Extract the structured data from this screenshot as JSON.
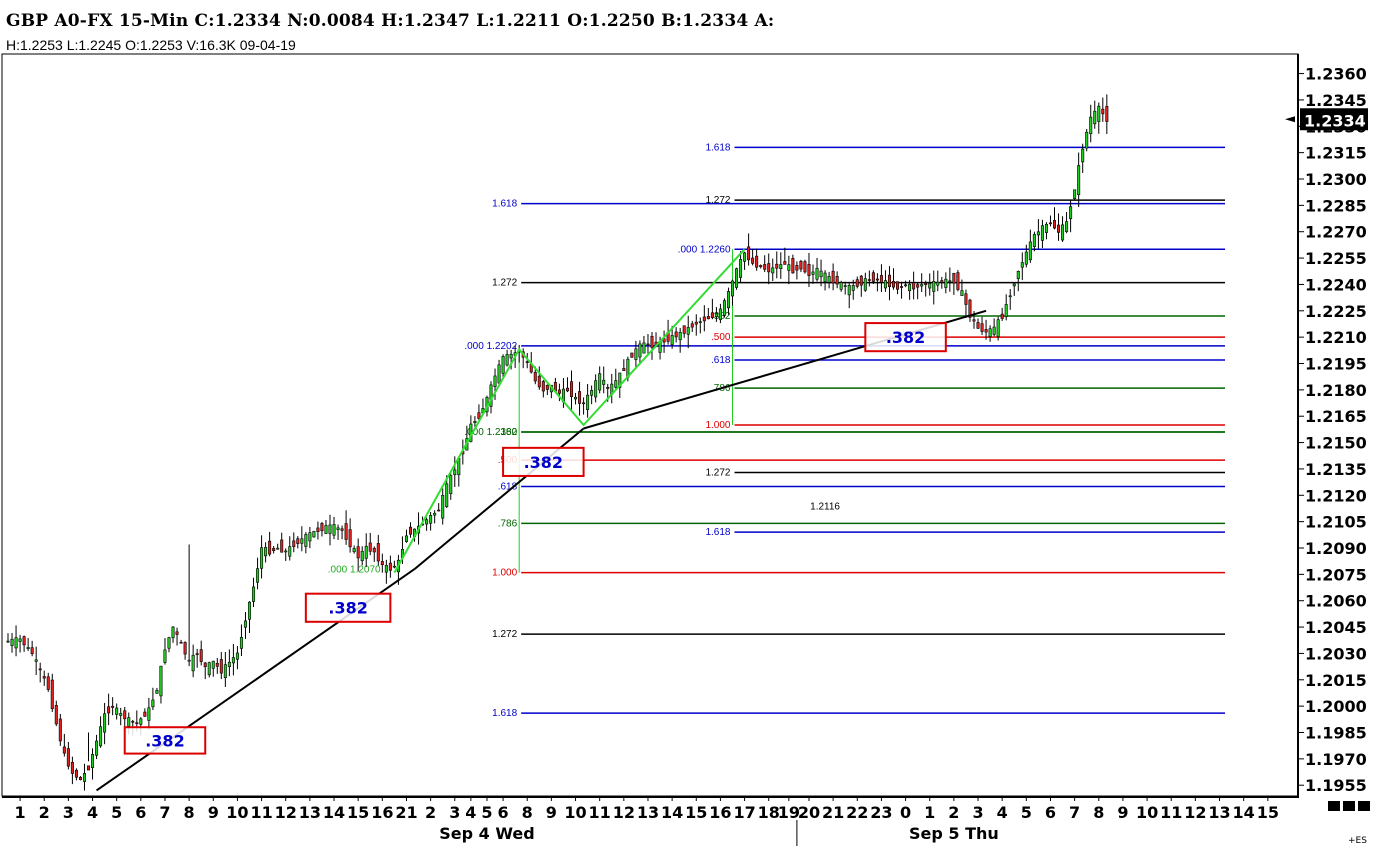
{
  "header": {
    "title": "GBP A0-FX 15-Min C:1.2334 N:0.0084 H:1.2347 L:1.2211 O:1.2250 B:1.2334 A:",
    "subtitle": "H:1.2253  L:1.2245  O:1.2253  V:16.3K  09-04-19"
  },
  "colors": {
    "up_candle": "#22cc22",
    "down_candle": "#dd2222",
    "wick": "#000000",
    "fib_blue": "#0000cc",
    "fib_black": "#000000",
    "fib_green": "#006600",
    "fib_red": "#dd0000",
    "zigzag": "#33dd33",
    "trendline": "#000000",
    "box_border": "#dd0000",
    "box_text": "#0000cc"
  },
  "chart_data": {
    "type": "candlestick",
    "symbol": "GBP A0-FX",
    "timeframe": "15-Min",
    "last_price": "1.2334",
    "y_ticks": [
      "1.2360",
      "1.2345",
      "1.2330",
      "1.2315",
      "1.2300",
      "1.2285",
      "1.2270",
      "1.2255",
      "1.2240",
      "1.2225",
      "1.2210",
      "1.2195",
      "1.2180",
      "1.2165",
      "1.2150",
      "1.2135",
      "1.2120",
      "1.2105",
      "1.2090",
      "1.2075",
      "1.2060",
      "1.2045",
      "1.2030",
      "1.2015",
      "1.2000",
      "1.1985",
      "1.1970",
      "1.1955"
    ],
    "ylim": [
      1.195,
      1.237
    ],
    "x_ticks": [
      {
        "label": "1",
        "i": 3
      },
      {
        "label": "2",
        "i": 9
      },
      {
        "label": "3",
        "i": 15
      },
      {
        "label": "4",
        "i": 21
      },
      {
        "label": "5",
        "i": 27
      },
      {
        "label": "6",
        "i": 33
      },
      {
        "label": "7",
        "i": 39
      },
      {
        "label": "8",
        "i": 45
      },
      {
        "label": "9",
        "i": 51
      },
      {
        "label": "10",
        "i": 57
      },
      {
        "label": "11",
        "i": 63
      },
      {
        "label": "12",
        "i": 69
      },
      {
        "label": "13",
        "i": 75
      },
      {
        "label": "14",
        "i": 81
      },
      {
        "label": "15",
        "i": 87
      },
      {
        "label": "16",
        "i": 93
      },
      {
        "label": "21",
        "i": 99
      },
      {
        "label": "2",
        "i": 105
      },
      {
        "label": "3",
        "i": 111
      },
      {
        "label": "4",
        "i": 115
      },
      {
        "label": "5",
        "i": 119
      },
      {
        "label": "6",
        "i": 123
      },
      {
        "label": "8",
        "i": 129
      },
      {
        "label": "9",
        "i": 135
      },
      {
        "label": "10",
        "i": 141
      },
      {
        "label": "11",
        "i": 147
      },
      {
        "label": "12",
        "i": 153
      },
      {
        "label": "13",
        "i": 159
      },
      {
        "label": "14",
        "i": 165
      },
      {
        "label": "15",
        "i": 171
      },
      {
        "label": "16",
        "i": 177
      },
      {
        "label": "17",
        "i": 183
      },
      {
        "label": "18",
        "i": 189
      },
      {
        "label": "19",
        "i": 194
      },
      {
        "label": "20",
        "i": 199
      },
      {
        "label": "21",
        "i": 205
      },
      {
        "label": "22",
        "i": 211
      },
      {
        "label": "23",
        "i": 217
      },
      {
        "label": "0",
        "i": 223
      },
      {
        "label": "1",
        "i": 229
      },
      {
        "label": "2",
        "i": 235
      },
      {
        "label": "3",
        "i": 241
      },
      {
        "label": "4",
        "i": 247
      },
      {
        "label": "5",
        "i": 253
      },
      {
        "label": "6",
        "i": 259
      },
      {
        "label": "7",
        "i": 265
      },
      {
        "label": "8",
        "i": 271
      },
      {
        "label": "9",
        "i": 277
      },
      {
        "label": "10",
        "i": 283
      },
      {
        "label": "11",
        "i": 289
      },
      {
        "label": "12",
        "i": 295
      },
      {
        "label": "13",
        "i": 301
      },
      {
        "label": "14",
        "i": 307
      },
      {
        "label": "15",
        "i": 313
      }
    ],
    "day_labels": [
      {
        "label": "Sep 4 Wed",
        "i": 119
      },
      {
        "label": "Sep 5 Thu",
        "i": 235
      }
    ],
    "day_separator_i": 196,
    "scroll_indicator": "+ES",
    "close_path": [
      [
        0,
        1.2037
      ],
      [
        3,
        1.2038
      ],
      [
        6,
        1.203
      ],
      [
        8,
        1.202
      ],
      [
        10,
        1.201
      ],
      [
        12,
        1.199
      ],
      [
        14,
        1.1972
      ],
      [
        16,
        1.1962
      ],
      [
        18,
        1.1958
      ],
      [
        20,
        1.1965
      ],
      [
        22,
        1.198
      ],
      [
        24,
        1.1995
      ],
      [
        26,
        1.2
      ],
      [
        28,
        1.1995
      ],
      [
        30,
        1.1992
      ],
      [
        32,
        1.199
      ],
      [
        35,
        1.1998
      ],
      [
        37,
        1.201
      ],
      [
        39,
        1.2033
      ],
      [
        41,
        1.2045
      ],
      [
        43,
        1.2035
      ],
      [
        45,
        1.2025
      ],
      [
        47,
        1.203
      ],
      [
        49,
        1.2022
      ],
      [
        51,
        1.2025
      ],
      [
        53,
        1.202
      ],
      [
        55,
        1.2025
      ],
      [
        57,
        1.203
      ],
      [
        59,
        1.205
      ],
      [
        61,
        1.2068
      ],
      [
        63,
        1.209
      ],
      [
        65,
        1.2088
      ],
      [
        67,
        1.209
      ],
      [
        69,
        1.2088
      ],
      [
        71,
        1.2092
      ],
      [
        73,
        1.2095
      ],
      [
        75,
        1.2098
      ],
      [
        77,
        1.21
      ],
      [
        79,
        1.2102
      ],
      [
        81,
        1.2102
      ],
      [
        83,
        1.21
      ],
      [
        85,
        1.2092
      ],
      [
        87,
        1.2085
      ],
      [
        89,
        1.209
      ],
      [
        91,
        1.2088
      ],
      [
        93,
        1.208
      ],
      [
        95,
        1.2078
      ],
      [
        97,
        1.2082
      ],
      [
        99,
        1.2098
      ],
      [
        101,
        1.21
      ],
      [
        103,
        1.2104
      ],
      [
        105,
        1.2108
      ],
      [
        107,
        1.2112
      ],
      [
        109,
        1.2125
      ],
      [
        111,
        1.2135
      ],
      [
        113,
        1.2145
      ],
      [
        115,
        1.216
      ],
      [
        117,
        1.2165
      ],
      [
        119,
        1.2175
      ],
      [
        121,
        1.2188
      ],
      [
        123,
        1.2198
      ],
      [
        125,
        1.22
      ],
      [
        127,
        1.2202
      ],
      [
        129,
        1.2195
      ],
      [
        131,
        1.2185
      ],
      [
        133,
        1.218
      ],
      [
        135,
        1.2182
      ],
      [
        137,
        1.2178
      ],
      [
        139,
        1.218
      ],
      [
        141,
        1.2175
      ],
      [
        143,
        1.2172
      ],
      [
        145,
        1.218
      ],
      [
        147,
        1.2188
      ],
      [
        149,
        1.218
      ],
      [
        151,
        1.2185
      ],
      [
        153,
        1.2192
      ],
      [
        155,
        1.22
      ],
      [
        157,
        1.2205
      ],
      [
        159,
        1.2206
      ],
      [
        161,
        1.2205
      ],
      [
        163,
        1.2208
      ],
      [
        165,
        1.221
      ],
      [
        167,
        1.2212
      ],
      [
        169,
        1.2215
      ],
      [
        171,
        1.2218
      ],
      [
        173,
        1.222
      ],
      [
        175,
        1.2222
      ],
      [
        177,
        1.2225
      ],
      [
        179,
        1.2235
      ],
      [
        181,
        1.2248
      ],
      [
        183,
        1.2258
      ],
      [
        185,
        1.2252
      ],
      [
        187,
        1.225
      ],
      [
        189,
        1.2248
      ],
      [
        191,
        1.225
      ],
      [
        193,
        1.2252
      ],
      [
        195,
        1.2248
      ],
      [
        197,
        1.225
      ],
      [
        199,
        1.2246
      ],
      [
        201,
        1.2248
      ],
      [
        203,
        1.2245
      ],
      [
        205,
        1.2242
      ],
      [
        207,
        1.224
      ],
      [
        209,
        1.2238
      ],
      [
        211,
        1.224
      ],
      [
        213,
        1.2242
      ],
      [
        215,
        1.2243
      ],
      [
        217,
        1.2242
      ],
      [
        219,
        1.224
      ],
      [
        221,
        1.2238
      ],
      [
        223,
        1.224
      ],
      [
        225,
        1.2238
      ],
      [
        227,
        1.224
      ],
      [
        229,
        1.224
      ],
      [
        231,
        1.2241
      ],
      [
        233,
        1.2242
      ],
      [
        235,
        1.2242
      ],
      [
        237,
        1.2235
      ],
      [
        239,
        1.2222
      ],
      [
        241,
        1.2215
      ],
      [
        243,
        1.2213
      ],
      [
        245,
        1.2215
      ],
      [
        247,
        1.2222
      ],
      [
        249,
        1.2235
      ],
      [
        251,
        1.2248
      ],
      [
        253,
        1.2258
      ],
      [
        255,
        1.2268
      ],
      [
        257,
        1.2272
      ],
      [
        259,
        1.2275
      ],
      [
        261,
        1.227
      ],
      [
        263,
        1.2275
      ],
      [
        265,
        1.2295
      ],
      [
        267,
        1.2318
      ],
      [
        269,
        1.2335
      ],
      [
        271,
        1.234
      ],
      [
        273,
        1.2334
      ]
    ],
    "spikes": [
      {
        "i": 45,
        "high": 1.2092
      },
      {
        "i": 20,
        "low": 1.1985
      },
      {
        "i": 265,
        "high": 1.229
      }
    ],
    "fib_levels": [
      {
        "label": "1.618",
        "price": 1.2318,
        "start_i": 180,
        "color": "fib_blue"
      },
      {
        "label": "1.272",
        "price": 1.2288,
        "start_i": 180,
        "color": "fib_black"
      },
      {
        "label": "1.618",
        "price": 1.2286,
        "start_i": 127,
        "color": "fib_blue"
      },
      {
        "label": ".000  1.2260",
        "price": 1.226,
        "start_i": 180,
        "color": "fib_blue"
      },
      {
        "label": "1.272",
        "price": 1.2241,
        "start_i": 127,
        "color": "fib_black"
      },
      {
        "label": ".382",
        "price": 1.2222,
        "start_i": 180,
        "color": "fib_green"
      },
      {
        "label": ".500",
        "price": 1.221,
        "start_i": 180,
        "color": "fib_red"
      },
      {
        "label": ".000  1.2202",
        "price": 1.2205,
        "start_i": 127,
        "color": "fib_blue"
      },
      {
        "label": ".618",
        "price": 1.2197,
        "start_i": 180,
        "color": "fib_blue"
      },
      {
        "label": ".786",
        "price": 1.2181,
        "start_i": 180,
        "color": "fib_green"
      },
      {
        "label": "1.000",
        "price": 1.216,
        "start_i": 180,
        "color": "fib_red"
      },
      {
        "label": ".000  1.2160",
        "price": 1.2156,
        "start_i": 127,
        "color": "fib_green"
      },
      {
        "label": ".382",
        "price": 1.2156,
        "start_i": 127,
        "color": "fib_green"
      },
      {
        "label": ".500",
        "price": 1.214,
        "start_i": 127,
        "color": "fib_red"
      },
      {
        "label": "1.272",
        "price": 1.2133,
        "start_i": 180,
        "color": "fib_black"
      },
      {
        "label": ".618",
        "price": 1.2125,
        "start_i": 127,
        "color": "fib_blue"
      },
      {
        "label": ".786",
        "price": 1.2104,
        "start_i": 127,
        "color": "fib_green"
      },
      {
        "label": "1.618",
        "price": 1.2099,
        "start_i": 180,
        "color": "fib_blue"
      },
      {
        "label": "1.000",
        "price": 1.2076,
        "start_i": 127,
        "color": "fib_red"
      },
      {
        "label": "1.272",
        "price": 1.2041,
        "start_i": 127,
        "color": "fib_black"
      },
      {
        "label": "1.618",
        "price": 1.1996,
        "start_i": 127,
        "color": "fib_blue"
      }
    ],
    "annotations": [
      {
        "text": "1.2116",
        "i": 203,
        "price": 1.2112
      },
      {
        "text": ".000  1.2070",
        "i": 86,
        "price": 1.2076
      }
    ],
    "zigzag": [
      [
        96,
        1.2076
      ],
      [
        127,
        1.2203
      ],
      [
        143,
        1.216
      ],
      [
        183,
        1.226
      ]
    ],
    "trendlines": [
      [
        [
          22,
          1.1952
        ],
        [
          101,
          1.2078
        ]
      ],
      [
        [
          101,
          1.2078
        ],
        [
          143,
          1.2158
        ]
      ],
      [
        [
          143,
          1.2158
        ],
        [
          243,
          1.2225
        ]
      ]
    ],
    "boxes": [
      {
        "label": ".382",
        "i0": 29,
        "i1": 49,
        "p0": 1.1988,
        "p1": 1.1973
      },
      {
        "label": ".382",
        "i0": 74,
        "i1": 95,
        "p0": 1.2064,
        "p1": 1.2048
      },
      {
        "label": ".382",
        "i0": 123,
        "i1": 143,
        "p0": 1.2147,
        "p1": 1.2131
      },
      {
        "label": ".382",
        "i0": 213,
        "i1": 233,
        "p0": 1.2218,
        "p1": 1.2202
      }
    ]
  }
}
